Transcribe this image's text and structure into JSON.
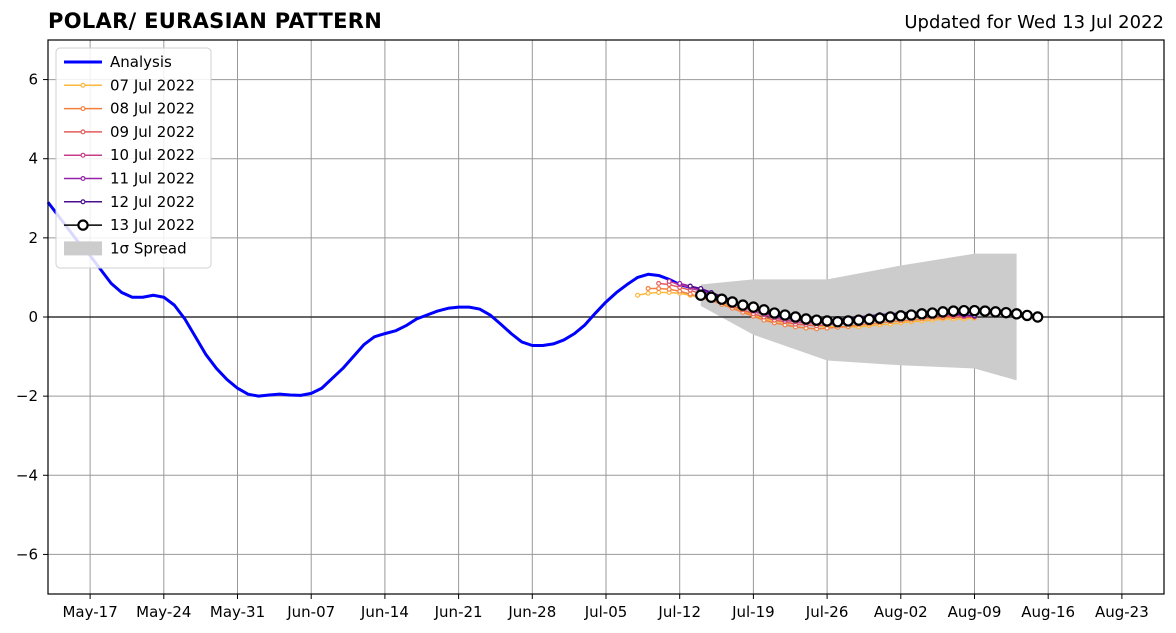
{
  "chart_data": {
    "type": "line",
    "title": "POLAR/ EURASIAN  PATTERN",
    "subtitle": "Updated for Wed 13 Jul 2022",
    "xlabel": "",
    "ylabel": "",
    "start_date": "2022-05-13",
    "xlim": [
      "2022-05-13",
      "2022-08-27"
    ],
    "ylim": [
      -7,
      7
    ],
    "grid": true,
    "legend_position": "top-left",
    "x_ticks": [
      {
        "date": "2022-05-17",
        "label": "May-17"
      },
      {
        "date": "2022-05-24",
        "label": "May-24"
      },
      {
        "date": "2022-05-31",
        "label": "May-31"
      },
      {
        "date": "2022-06-07",
        "label": "Jun-07"
      },
      {
        "date": "2022-06-14",
        "label": "Jun-14"
      },
      {
        "date": "2022-06-21",
        "label": "Jun-21"
      },
      {
        "date": "2022-06-28",
        "label": "Jun-28"
      },
      {
        "date": "2022-07-05",
        "label": "Jul-05"
      },
      {
        "date": "2022-07-12",
        "label": "Jul-12"
      },
      {
        "date": "2022-07-19",
        "label": "Jul-19"
      },
      {
        "date": "2022-07-26",
        "label": "Jul-26"
      },
      {
        "date": "2022-08-02",
        "label": "Aug-02"
      },
      {
        "date": "2022-08-09",
        "label": "Aug-09"
      },
      {
        "date": "2022-08-16",
        "label": "Aug-16"
      },
      {
        "date": "2022-08-23",
        "label": "Aug-23"
      }
    ],
    "y_ticks": [
      {
        "value": 6,
        "label": "6"
      },
      {
        "value": 4,
        "label": "4"
      },
      {
        "value": 2,
        "label": "2"
      },
      {
        "value": 0,
        "label": "0"
      },
      {
        "value": -2,
        "label": "−2"
      },
      {
        "value": -4,
        "label": "−4"
      },
      {
        "value": -6,
        "label": "−6"
      }
    ],
    "zero_line": true,
    "analysis": {
      "name": "Analysis",
      "color": "#0000ff",
      "x": [
        "2022-05-13",
        "2022-05-14",
        "2022-05-15",
        "2022-05-16",
        "2022-05-17",
        "2022-05-18",
        "2022-05-19",
        "2022-05-20",
        "2022-05-21",
        "2022-05-22",
        "2022-05-23",
        "2022-05-24",
        "2022-05-25",
        "2022-05-26",
        "2022-05-27",
        "2022-05-28",
        "2022-05-29",
        "2022-05-30",
        "2022-05-31",
        "2022-06-01",
        "2022-06-02",
        "2022-06-03",
        "2022-06-04",
        "2022-06-05",
        "2022-06-06",
        "2022-06-07",
        "2022-06-08",
        "2022-06-09",
        "2022-06-10",
        "2022-06-11",
        "2022-06-12",
        "2022-06-13",
        "2022-06-14",
        "2022-06-15",
        "2022-06-16",
        "2022-06-17",
        "2022-06-18",
        "2022-06-19",
        "2022-06-20",
        "2022-06-21",
        "2022-06-22",
        "2022-06-23",
        "2022-06-24",
        "2022-06-25",
        "2022-06-26",
        "2022-06-27",
        "2022-06-28",
        "2022-06-29",
        "2022-06-30",
        "2022-07-01",
        "2022-07-02",
        "2022-07-03",
        "2022-07-04",
        "2022-07-05",
        "2022-07-06",
        "2022-07-07",
        "2022-07-08",
        "2022-07-09",
        "2022-07-10",
        "2022-07-11",
        "2022-07-12",
        "2022-07-13",
        "2022-07-14",
        "2022-07-15"
      ],
      "y": [
        2.9,
        2.55,
        2.2,
        1.85,
        1.55,
        1.2,
        0.85,
        0.62,
        0.5,
        0.5,
        0.55,
        0.5,
        0.3,
        -0.05,
        -0.5,
        -0.95,
        -1.3,
        -1.58,
        -1.8,
        -1.95,
        -2.0,
        -1.97,
        -1.95,
        -1.97,
        -1.98,
        -1.93,
        -1.8,
        -1.55,
        -1.3,
        -1.0,
        -0.7,
        -0.5,
        -0.42,
        -0.35,
        -0.22,
        -0.05,
        0.05,
        0.15,
        0.22,
        0.25,
        0.25,
        0.2,
        0.05,
        -0.18,
        -0.42,
        -0.63,
        -0.72,
        -0.72,
        -0.68,
        -0.58,
        -0.42,
        -0.2,
        0.1,
        0.38,
        0.62,
        0.82,
        1.0,
        1.08,
        1.05,
        0.95,
        0.82,
        0.75,
        0.68,
        0.6
      ]
    },
    "forecasts": [
      {
        "name": "07 Jul 2022",
        "color": "#fcb83c",
        "start": "2022-07-08",
        "y": [
          0.55,
          0.6,
          0.62,
          0.62,
          0.6,
          0.55,
          0.48,
          0.42,
          0.35,
          0.25,
          0.15,
          0.05,
          -0.05,
          -0.1,
          -0.15,
          -0.18,
          -0.2,
          -0.22,
          -0.25,
          -0.25,
          -0.25,
          -0.25,
          -0.22,
          -0.2,
          -0.18,
          -0.15,
          -0.12,
          -0.1,
          -0.08,
          -0.05,
          -0.05,
          -0.05,
          -0.03
        ]
      },
      {
        "name": "08 Jul 2022",
        "color": "#f47e3e",
        "start": "2022-07-09",
        "y": [
          0.72,
          0.72,
          0.7,
          0.65,
          0.58,
          0.5,
          0.42,
          0.32,
          0.22,
          0.12,
          0.02,
          -0.08,
          -0.15,
          -0.2,
          -0.25,
          -0.28,
          -0.3,
          -0.28,
          -0.26,
          -0.24,
          -0.2,
          -0.18,
          -0.15,
          -0.12,
          -0.1,
          -0.08,
          -0.05,
          -0.03,
          -0.02,
          0.0,
          0.0,
          0.0
        ]
      },
      {
        "name": "09 Jul 2022",
        "color": "#e35b5b",
        "start": "2022-07-10",
        "y": [
          0.85,
          0.82,
          0.75,
          0.68,
          0.58,
          0.48,
          0.38,
          0.28,
          0.18,
          0.08,
          0.0,
          -0.08,
          -0.12,
          -0.18,
          -0.2,
          -0.22,
          -0.2,
          -0.18,
          -0.16,
          -0.12,
          -0.1,
          -0.06,
          -0.03,
          0.0,
          0.02,
          0.02,
          0.03,
          0.02,
          0.02,
          0.0,
          0.0
        ]
      },
      {
        "name": "10 Jul 2022",
        "color": "#c63d8a",
        "start": "2022-07-11",
        "y": [
          0.9,
          0.82,
          0.75,
          0.65,
          0.55,
          0.45,
          0.35,
          0.25,
          0.15,
          0.06,
          -0.02,
          -0.08,
          -0.12,
          -0.15,
          -0.15,
          -0.14,
          -0.12,
          -0.1,
          -0.07,
          -0.04,
          -0.01,
          0.02,
          0.05,
          0.07,
          0.08,
          0.08,
          0.07,
          0.05,
          0.03,
          0.02
        ]
      },
      {
        "name": "11 Jul 2022",
        "color": "#9423a8",
        "start": "2022-07-12",
        "y": [
          0.85,
          0.78,
          0.7,
          0.6,
          0.5,
          0.4,
          0.3,
          0.2,
          0.1,
          0.03,
          -0.03,
          -0.07,
          -0.1,
          -0.1,
          -0.1,
          -0.08,
          -0.05,
          -0.02,
          0.0,
          0.03,
          0.06,
          0.08,
          0.1,
          0.1,
          0.1,
          0.08,
          0.06,
          0.04,
          0.02
        ]
      },
      {
        "name": "12 Jul 2022",
        "color": "#4b0c8c",
        "start": "2022-07-13",
        "y": [
          0.78,
          0.72,
          0.62,
          0.52,
          0.42,
          0.32,
          0.22,
          0.12,
          0.04,
          -0.02,
          -0.07,
          -0.1,
          -0.1,
          -0.08,
          -0.06,
          -0.03,
          0.0,
          0.03,
          0.06,
          0.08,
          0.1,
          0.12,
          0.12,
          0.12,
          0.1,
          0.08,
          0.06,
          0.03
        ]
      }
    ],
    "latest": {
      "name": "13 Jul 2022",
      "line_color": "#000000",
      "marker_fill": "#ffffff",
      "start": "2022-07-14",
      "y": [
        0.55,
        0.5,
        0.45,
        0.38,
        0.3,
        0.25,
        0.18,
        0.1,
        0.05,
        0.0,
        -0.05,
        -0.08,
        -0.1,
        -0.12,
        -0.1,
        -0.08,
        -0.06,
        -0.03,
        0.0,
        0.03,
        0.05,
        0.08,
        0.1,
        0.13,
        0.15,
        0.16,
        0.16,
        0.15,
        0.13,
        0.11,
        0.08,
        0.04,
        0.0
      ]
    },
    "spread": {
      "name": "1σ Spread",
      "color": "#cccccc",
      "x": [
        "2022-07-14",
        "2022-07-19",
        "2022-07-26",
        "2022-08-02",
        "2022-08-09",
        "2022-08-13"
      ],
      "upper": [
        0.82,
        0.95,
        0.95,
        1.3,
        1.6,
        1.6
      ],
      "lower": [
        0.28,
        -0.45,
        -1.1,
        -1.22,
        -1.3,
        -1.6
      ]
    },
    "legend": [
      {
        "label": "Analysis",
        "kind": "analysis",
        "color": "#0000ff"
      },
      {
        "label": "07 Jul 2022",
        "kind": "forecast",
        "color": "#fcb83c"
      },
      {
        "label": "08 Jul 2022",
        "kind": "forecast",
        "color": "#f47e3e"
      },
      {
        "label": "09 Jul 2022",
        "kind": "forecast",
        "color": "#e35b5b"
      },
      {
        "label": "10 Jul 2022",
        "kind": "forecast",
        "color": "#c63d8a"
      },
      {
        "label": "11 Jul 2022",
        "kind": "forecast",
        "color": "#9423a8"
      },
      {
        "label": "12 Jul 2022",
        "kind": "forecast",
        "color": "#4b0c8c"
      },
      {
        "label": "13 Jul 2022",
        "kind": "latest",
        "color": "#000000"
      },
      {
        "label": "1σ Spread",
        "kind": "spread",
        "color": "#cccccc"
      }
    ]
  }
}
